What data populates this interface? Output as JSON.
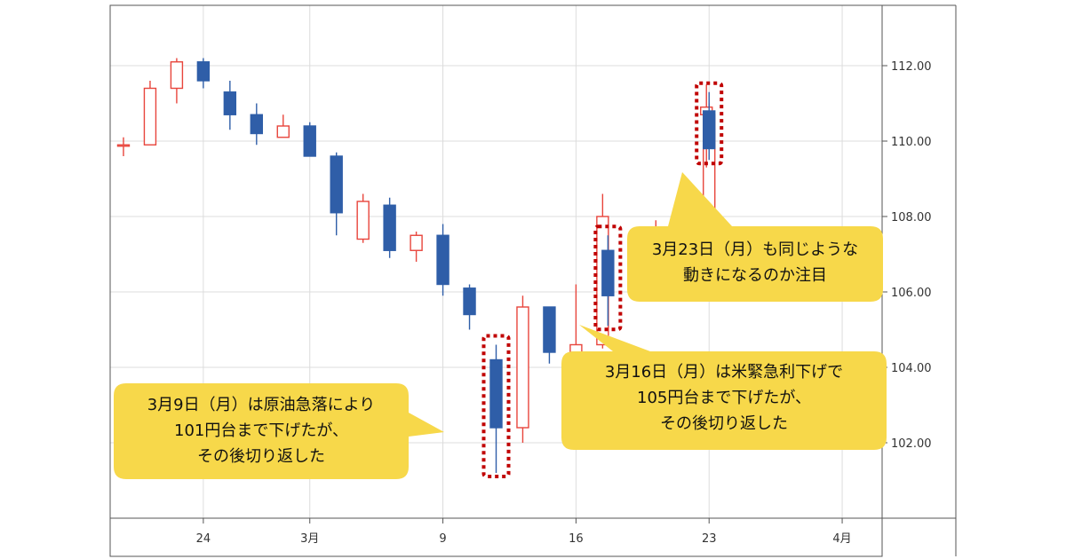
{
  "chart_data": {
    "type": "candlestick",
    "colors": {
      "up": "#e8453c",
      "down": "#2f5ea8",
      "grid": "#dcdcdc",
      "axis": "#555555",
      "callout_bg": "#f7d84a",
      "highlight": "#c00000"
    },
    "y_ticks": [
      "102.00",
      "104.00",
      "106.00",
      "108.00",
      "110.00",
      "112.00"
    ],
    "ylim": [
      100.0,
      113.6
    ],
    "x_ticks": [
      {
        "label": "24",
        "index": 3
      },
      {
        "label": "3月",
        "index": 7
      },
      {
        "label": "9",
        "index": 12
      },
      {
        "label": "16",
        "index": 17
      },
      {
        "label": "23",
        "index": 22
      },
      {
        "label": "4月",
        "index": 27
      }
    ],
    "x_range": [
      -0.5,
      28.5
    ],
    "candles": [
      {
        "o": 109.9,
        "h": 110.1,
        "l": 109.6,
        "c": 109.9
      },
      {
        "o": 109.9,
        "h": 111.6,
        "l": 109.9,
        "c": 111.4
      },
      {
        "o": 111.4,
        "h": 112.2,
        "l": 111.0,
        "c": 112.1
      },
      {
        "o": 112.1,
        "h": 112.2,
        "l": 111.4,
        "c": 111.6
      },
      {
        "o": 111.3,
        "h": 111.6,
        "l": 110.3,
        "c": 110.7
      },
      {
        "o": 110.7,
        "h": 111.0,
        "l": 109.9,
        "c": 110.2
      },
      {
        "o": 110.1,
        "h": 110.7,
        "l": 110.1,
        "c": 110.4
      },
      {
        "o": 110.4,
        "h": 110.5,
        "l": 109.6,
        "c": 109.6
      },
      {
        "o": 109.6,
        "h": 109.7,
        "l": 107.5,
        "c": 108.1
      },
      {
        "o": 107.4,
        "h": 108.6,
        "l": 107.3,
        "c": 108.4
      },
      {
        "o": 108.3,
        "h": 108.5,
        "l": 106.9,
        "c": 107.1
      },
      {
        "o": 107.1,
        "h": 107.6,
        "l": 106.8,
        "c": 107.5
      },
      {
        "o": 107.5,
        "h": 107.8,
        "l": 105.9,
        "c": 106.2
      },
      {
        "o": 106.1,
        "h": 106.2,
        "l": 105.0,
        "c": 105.4
      },
      {
        "o": 104.2,
        "h": 104.6,
        "l": 101.2,
        "c": 102.4
      },
      {
        "o": 102.4,
        "h": 105.9,
        "l": 102.0,
        "c": 105.6
      },
      {
        "o": 105.6,
        "h": 105.6,
        "l": 104.1,
        "c": 104.4
      },
      {
        "o": 104.4,
        "h": 106.2,
        "l": 103.1,
        "c": 104.6
      },
      {
        "o": 104.6,
        "h": 108.6,
        "l": 104.5,
        "c": 108.0
      },
      {
        "o": 107.1,
        "h": 107.5,
        "l": 105.1,
        "c": 105.9
      },
      {
        "o": 105.9,
        "h": 107.9,
        "l": 105.9,
        "c": 107.7
      },
      {
        "o": 107.6,
        "h": 108.7,
        "l": 106.7,
        "c": 108.0
      },
      {
        "o": 107.9,
        "h": 111.0,
        "l": 107.8,
        "c": 110.7
      },
      {
        "o": 110.7,
        "h": 111.5,
        "l": 109.3,
        "c": 110.9
      },
      {
        "o": 110.8,
        "h": 111.3,
        "l": 109.5,
        "c": 109.8
      }
    ],
    "candle_x": [
      0,
      1,
      2,
      3,
      4,
      5,
      6,
      7,
      8,
      9,
      10,
      11,
      12,
      13,
      14,
      15,
      16,
      17,
      18,
      18.2,
      20,
      21,
      22,
      21.9,
      22
    ],
    "highlights": [
      {
        "candle": 14
      },
      {
        "candle": 19
      },
      {
        "candle": 24
      }
    ]
  },
  "callouts": [
    {
      "lines": [
        "3月9日（月）は原油急落により",
        "101円台まで下げたが、",
        "その後切り返した"
      ]
    },
    {
      "lines": [
        "3月16日（月）は米緊急利下げで",
        "105円台まで下げたが、",
        "その後切り返した"
      ]
    },
    {
      "lines": [
        "3月23日（月）も同じような",
        "動きになるのか注目"
      ]
    }
  ]
}
